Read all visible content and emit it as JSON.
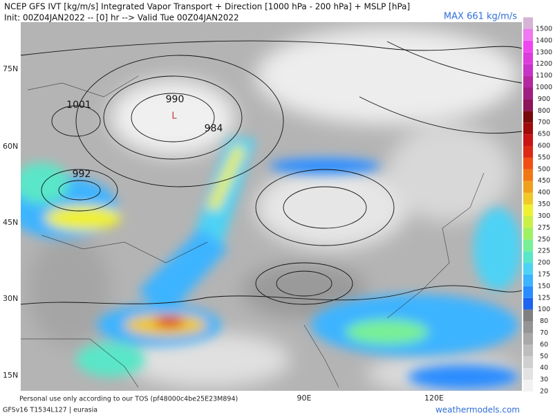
{
  "header": {
    "title": "NCEP GFS IVT [kg/m/s] Integrated Vapor Transport + Direction [1000 hPa - 200 hPa] + MSLP [hPa]",
    "init": "Init: 00Z04JAN2022 -- [0] hr --> Valid Tue 00Z04JAN2022",
    "max": "MAX 661 kg/m/s"
  },
  "map": {
    "lat_labels": [
      "75N",
      "60N",
      "45N",
      "30N",
      "15N"
    ],
    "lon_labels": [
      "90E",
      "120E"
    ],
    "pressure_labels": [
      "1001",
      "990",
      "984",
      "992"
    ],
    "low_marker": "L"
  },
  "colorbar": {
    "levels": [
      20,
      30,
      40,
      50,
      60,
      70,
      80,
      100,
      125,
      150,
      175,
      200,
      225,
      250,
      275,
      300,
      350,
      400,
      450,
      500,
      550,
      600,
      650,
      700,
      800,
      900,
      1000,
      1100,
      1200,
      1300,
      1400,
      1500
    ],
    "colors": [
      "#f2f2f2",
      "#e2e2e2",
      "#cfcfcf",
      "#bdbdbd",
      "#a9a9a9",
      "#959595",
      "#808080",
      "#1e64f0",
      "#2a8cff",
      "#3cb4ff",
      "#4ed2f5",
      "#5ae6c8",
      "#78f096",
      "#a0f064",
      "#c8f046",
      "#f0f032",
      "#f0c828",
      "#f0a01e",
      "#f07814",
      "#f05014",
      "#dc2814",
      "#c81414",
      "#a00a0a",
      "#780a0a",
      "#8c145a",
      "#a01e82",
      "#b428a0",
      "#c832c8",
      "#dc3cdc",
      "#f046f0",
      "#f078f0",
      "#d6b4d6"
    ]
  },
  "footer": {
    "tos": "Personal use only according to our TOS (pf48000c4be25E23M894)",
    "model": "GFSv16 T1534L127 | eurasia",
    "site": "weathermodels.com"
  }
}
